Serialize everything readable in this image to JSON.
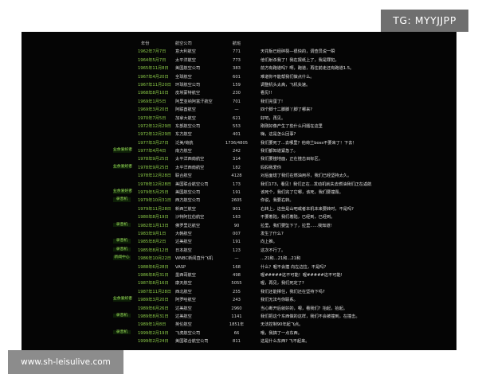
{
  "watermark_top": "TG: MYYJJPP",
  "watermark_bottom": "www.sh-leisulive.com",
  "table": {
    "headers": {
      "date": "年份",
      "airline": "航空公司",
      "number": "航班"
    },
    "rows": [
      {
        "tag": "",
        "date": "1962年7月7日",
        "airline": "意大利航空",
        "number": "771",
        "comment": "天花板已经碎裂—很快的，调查员说一瞬"
      },
      {
        "tag": "",
        "date": "1964年5月7日",
        "airline": "太平洋航空",
        "number": "773",
        "comment": "他们射杀我了！我在报纸上了，我是罪犯。"
      },
      {
        "tag": "",
        "date": "1965年11月8日",
        "airline": "美国航空公司",
        "number": "383",
        "comment": "前方有跑道吗？啊，跑道，再往前走还有跑道1.5。"
      },
      {
        "tag": "",
        "date": "1967年4月20日",
        "airline": "全球航空",
        "number": "601",
        "comment": "难道你不能帮我们做点什么。"
      },
      {
        "tag": "",
        "date": "1967年11月20日",
        "airline": "环球航空公司",
        "number": "159",
        "comment": "调整机头太高，飞机失速。"
      },
      {
        "tag": "",
        "date": "1968年8月10日",
        "airline": "皮埃蒙特航空",
        "number": "230",
        "comment": "看见!!"
      },
      {
        "tag": "",
        "date": "1969年1月5日",
        "airline": "阿里亚纳阿富汗航空",
        "number": "701",
        "comment": "我们完蛋了!"
      },
      {
        "tag": "",
        "date": "1969年3月20日",
        "airline": "阿联酋航空",
        "number": "—",
        "comment": "四个脚十二脚脚丫脚了哪来?"
      },
      {
        "tag": "",
        "date": "1970年7月5日",
        "airline": "加拿大航空",
        "number": "621",
        "comment": "好吧，再见。"
      },
      {
        "tag": "",
        "date": "1972年12月29日",
        "airline": "东部航空公司",
        "number": "553",
        "comment": "刚刚好像产生了些什么问题在这里"
      },
      {
        "tag": "",
        "date": "1972年12月29日",
        "airline": "东方航空",
        "number": "401",
        "comment": "嗨，这是怎么回事?"
      },
      {
        "tag": "",
        "date": "1977年3月27日",
        "airline": "泛美/荷航",
        "number": "1736/4805",
        "comment": "我们要死了...去哪里？他荷兰boss不要来了！下去！"
      },
      {
        "tag": "业余爱好者",
        "date": "1977年4月4日",
        "airline": "南方航空",
        "number": "242",
        "comment": "我们都知道紧急了。"
      },
      {
        "tag": "",
        "date": "1978年9月25日",
        "airline": "太平洋西南航空",
        "number": "314",
        "comment": "我们要撞地面，正在撞击目标区。"
      },
      {
        "tag": "业余爱好者",
        "date": "1978年9月25日",
        "airline": "太平洋西南航空",
        "number": "182",
        "comment": "妈妈我爱你"
      },
      {
        "tag": "",
        "date": "1978年12月28日",
        "airline": "联合航空",
        "number": "4128",
        "comment": "对后面熄了我们在燃油用尽，我们已经坚持太久。"
      },
      {
        "tag": "",
        "date": "1978年12月28日",
        "airline": "美国联合航空公司",
        "number": "173",
        "comment": "我们173，看见！我们正在...发动机就失去燃油我们正在返航"
      },
      {
        "tag": "业余爱好者",
        "date": "1979年5月25日",
        "airline": "美国航空公司",
        "number": "191",
        "comment": "该死个，我们完了它哪，该死，我们要撞毁。"
      },
      {
        "tag": "录音机",
        "date": "1979年10月31日",
        "airline": "西方航空公司",
        "number": "2605",
        "comment": "你说，我要右转。"
      },
      {
        "tag": "",
        "date": "1979年11月28日",
        "airline": "新西兰航空",
        "number": "901",
        "comment": "右转上，这些是山吧或者本机本来要转时，不是吗?"
      },
      {
        "tag": "",
        "date": "1980年8月19日",
        "airline": "沙特阿拉伯航空",
        "number": "163",
        "comment": "不要着陆，我们着陆，已经到，已经到。"
      },
      {
        "tag": "录音机",
        "date": "1982年1月13日",
        "airline": "佛罗里达航空",
        "number": "90",
        "comment": "拉里，我们要坠下了，拉里......我知道!"
      },
      {
        "tag": "",
        "date": "1983年9月1日",
        "airline": "大韩航空",
        "number": "007",
        "comment": "发生了什么?"
      },
      {
        "tag": "录音机",
        "date": "1985年8月2日",
        "airline": "达美航空",
        "number": "191",
        "comment": "向上推。"
      },
      {
        "tag": "录音机",
        "date": "1985年8月12日",
        "airline": "日本航空",
        "number": "123",
        "comment": "这次不行了。"
      },
      {
        "tag": "新闻中心",
        "date": "1986年10月22日",
        "airline": "WNBC新闻直升飞机",
        "number": "—",
        "comment": "...21和...21和...21和"
      },
      {
        "tag": "",
        "date": "1988年6月28日",
        "airline": "VASP",
        "number": "168",
        "comment": "什么？喔不会撞 向左边拉，不是吗?"
      },
      {
        "tag": "",
        "date": "1986年8月31日",
        "airline": "墨西哥航空",
        "number": "498",
        "comment": "喔#####这不可能！喔#####这不可能!"
      },
      {
        "tag": "",
        "date": "1987年8月16日",
        "airline": "康天航空",
        "number": "5055",
        "comment": "喔，再见，我们死定了?"
      },
      {
        "tag": "",
        "date": "1987年11月28日",
        "airline": "西北航空",
        "number": "255",
        "comment": "我们还能撑住，我们还在坚持下吗?"
      },
      {
        "tag": "业余爱好者",
        "date": "1989年3月20日",
        "airline": "阿罗哈航空",
        "number": "243",
        "comment": "我们无法与你联系。"
      },
      {
        "tag": "",
        "date": "1989年6月26日",
        "airline": "达美航空",
        "number": "2960",
        "comment": "当心断开后就好的，嗯，看我们？抬起，抬起。"
      },
      {
        "tag": "录音机",
        "date": "1989年8月31日",
        "airline": "达美航空",
        "number": "1141",
        "comment": "我们把这个东西做的这样，我们不会被撞到，在撞击。"
      },
      {
        "tag": "",
        "date": "1989年1月8日",
        "airline": "英伦航空",
        "number": "1851年",
        "comment": "无法控制90年起飞点。"
      },
      {
        "tag": "录音机",
        "date": "1999年2月19日",
        "airline": "飞虎航空公司",
        "number": "66",
        "comment": "哦，我搞了一点东西。"
      },
      {
        "tag": "",
        "date": "1999年2月24日",
        "airline": "美国联合航空公司",
        "number": "811",
        "comment": "这是什么东西? 飞不起来。"
      }
    ]
  }
}
